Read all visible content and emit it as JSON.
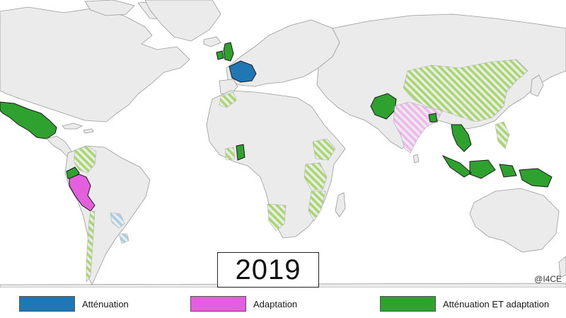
{
  "map": {
    "year": "2019",
    "credit": "@I4CE"
  },
  "legend": {
    "items": [
      {
        "label": "Atténuation",
        "color": "#1f78b4"
      },
      {
        "label": "Adaptation",
        "color": "#e45fde"
      },
      {
        "label": "Atténuation ET adaptation",
        "color": "#2ea12e"
      }
    ]
  },
  "colors": {
    "land": "#ebebeb",
    "ocean": "#ffffff",
    "mitigation": "#1f78b4",
    "adaptation": "#e45fde",
    "both": "#2ea12e",
    "both_hatched": "#a6d96a",
    "adaptation_hatched": "#f1b6ee",
    "mitigation_hatched": "#a6cee3"
  }
}
